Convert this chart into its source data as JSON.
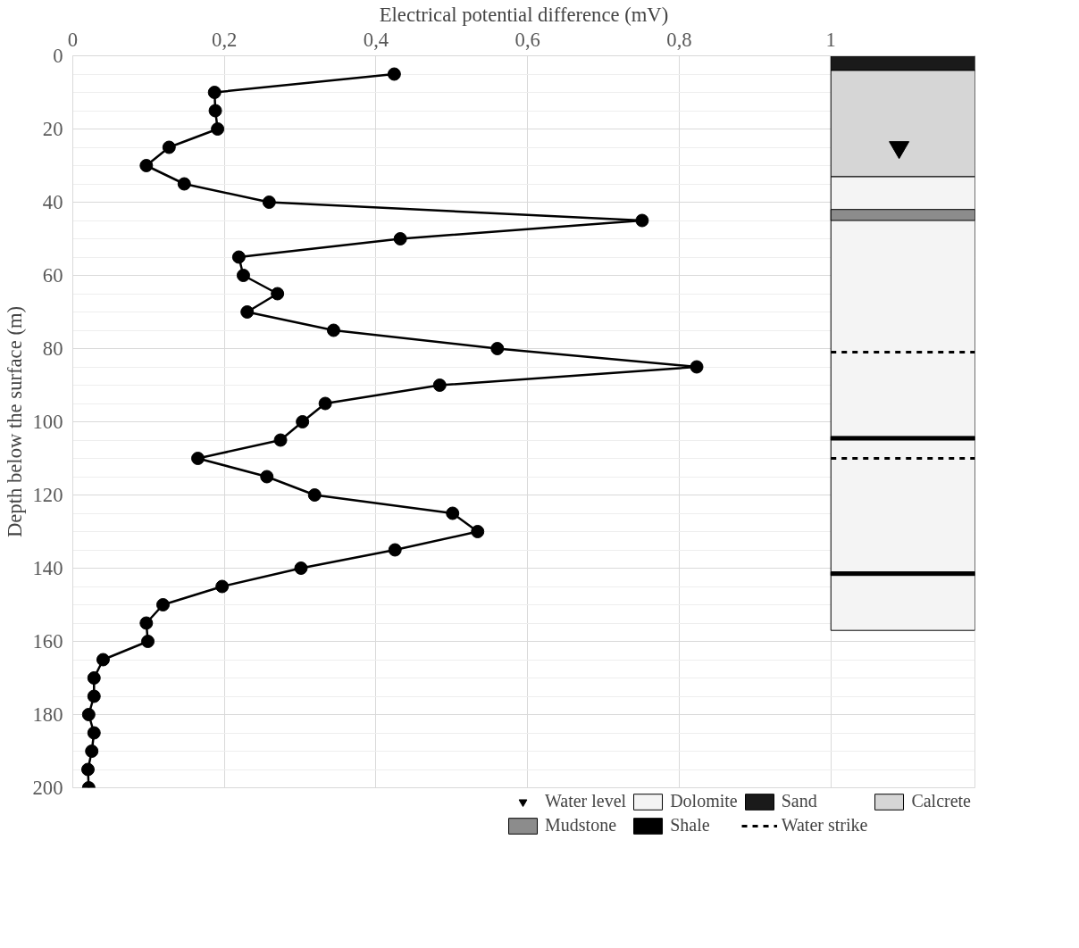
{
  "chart_data": {
    "type": "line",
    "xlabel": "Electrical potential difference (mV)",
    "ylabel": "Depth below the surface (m)",
    "xlim": [
      0,
      1.19
    ],
    "xticks": [
      0,
      {
        "value": 0.2,
        "label": "0,2"
      },
      {
        "value": 0.4,
        "label": "0,4"
      },
      {
        "value": 0.6,
        "label": "0,6"
      },
      {
        "value": 0.8,
        "label": "0,8"
      },
      1
    ],
    "ylim": [
      200,
      0
    ],
    "yticks": [
      0,
      20,
      40,
      60,
      80,
      100,
      120,
      140,
      160,
      180,
      200
    ],
    "grid": true,
    "legend": "bottom",
    "marker": "circle",
    "line_style": "solid",
    "series": [
      {
        "color": "#000000",
        "x": [
          0.424,
          0.187,
          0.188,
          0.191,
          0.127,
          0.097,
          0.147,
          0.259,
          0.751,
          0.432,
          0.219,
          0.225,
          0.27,
          0.23,
          0.344,
          0.56,
          0.823,
          0.484,
          0.333,
          0.303,
          0.274,
          0.165,
          0.256,
          0.319,
          0.501,
          0.534,
          0.425,
          0.301,
          0.197,
          0.119,
          0.097,
          0.099,
          0.04,
          0.028,
          0.028,
          0.021,
          0.028,
          0.025,
          0.02,
          0.021
        ],
        "values": [
          5,
          10,
          15,
          20,
          25,
          30,
          35,
          40,
          45,
          50,
          55,
          60,
          65,
          70,
          75,
          80,
          85,
          90,
          95,
          100,
          105,
          110,
          115,
          120,
          125,
          130,
          135,
          140,
          145,
          150,
          155,
          160,
          165,
          170,
          175,
          180,
          185,
          190,
          195,
          200
        ]
      },
      {
        "type": "scatter",
        "name": "Water level",
        "marker": "triangle",
        "color": "#000000",
        "x": [
          1.09
        ],
        "values": [
          25
        ]
      }
    ],
    "bands": [
      {
        "axis": "y",
        "from": 33,
        "to": 157,
        "label": "Dolomite",
        "color": "#f4f4f4"
      },
      {
        "axis": "y",
        "from": 0,
        "to": 4,
        "label": "Sand",
        "color": "#1a1a1a"
      },
      {
        "axis": "y",
        "from": 4,
        "to": 33,
        "label": "Calcrete",
        "color": "#d6d6d6"
      },
      {
        "axis": "y",
        "from": 42,
        "to": 45,
        "label": "Mudstone",
        "color": "#8c8c8c"
      },
      {
        "axis": "y",
        "from": 104,
        "to": 105,
        "label": "Shale",
        "color": "#000000"
      },
      {
        "axis": "y",
        "from": 141,
        "to": 142,
        "color": "#000000"
      }
    ],
    "ref_lines": [
      {
        "axis": "y",
        "value": 81,
        "label": "Water strike",
        "line_style": "dashed",
        "color": "#000000"
      },
      {
        "axis": "y",
        "value": 110,
        "line_style": "dashed",
        "color": "#000000"
      }
    ]
  }
}
